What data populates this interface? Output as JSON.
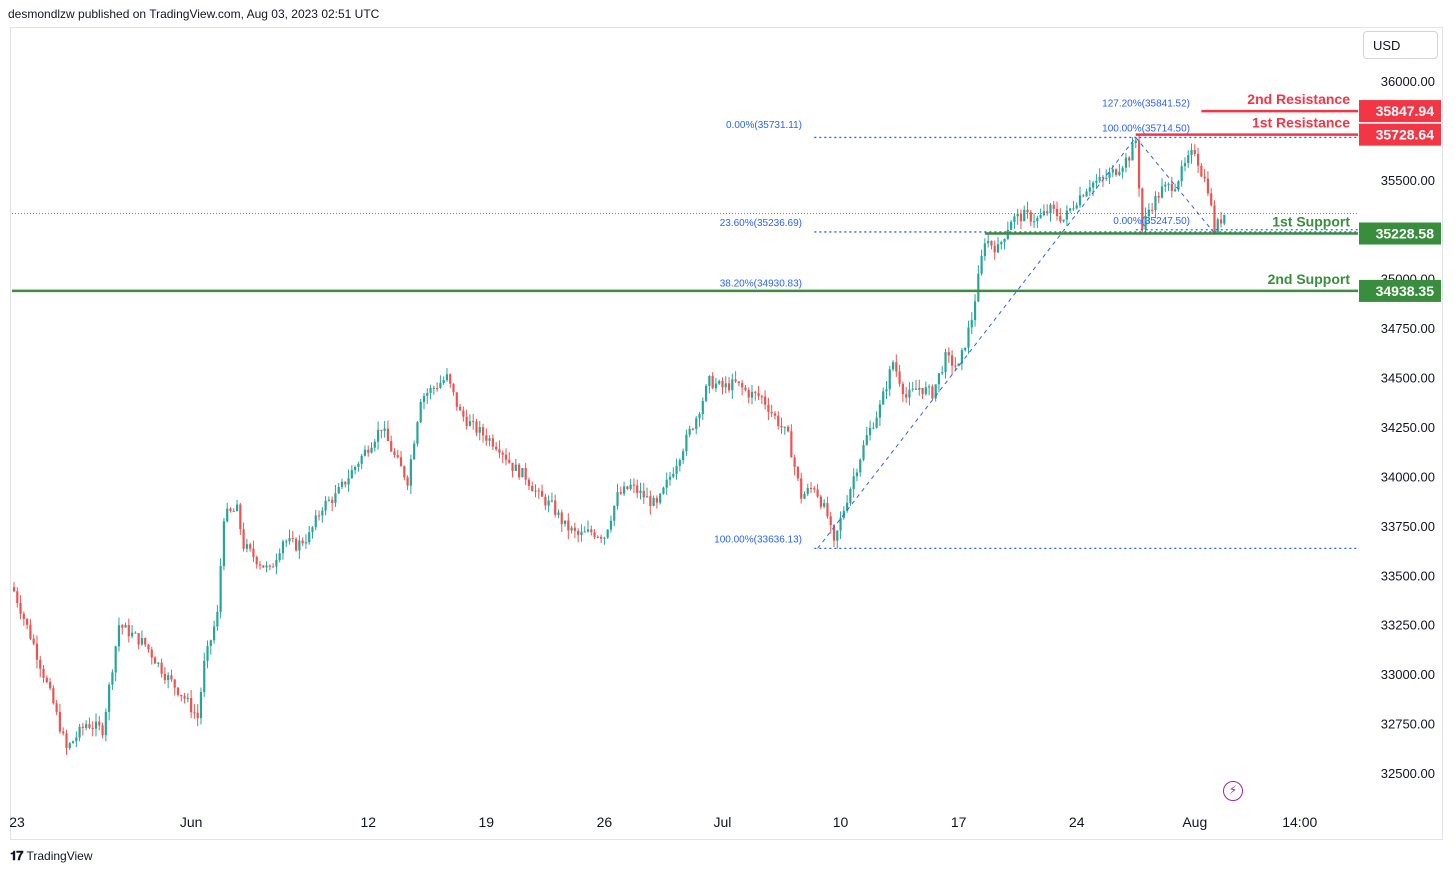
{
  "header": {
    "published": "desmondlzw published on TradingView.com, Aug 03, 2023 02:51 UTC"
  },
  "toolbar": {
    "currency": "USD"
  },
  "footer": {
    "brand": "TradingView"
  },
  "icons": {
    "brand_logo": "tradingview-logo-icon",
    "event": "lightning-icon"
  },
  "colors": {
    "bull": "#26a69a",
    "bear": "#ef5350",
    "resistance": "#f23645",
    "support": "#388e3c",
    "fib": "#2962ff",
    "axis_text": "#131722"
  },
  "chart_data": {
    "type": "candlestick",
    "symbol_currency": "USD",
    "ylim": [
      32350,
      36300
    ],
    "yticks": [
      32500,
      32750,
      33000,
      33250,
      33500,
      33750,
      34000,
      34250,
      34500,
      34750,
      35000,
      35500,
      36000
    ],
    "ytick_labels": [
      "32500.00",
      "32750.00",
      "33000.00",
      "33250.00",
      "33500.00",
      "33750.00",
      "34000.00",
      "34250.00",
      "34500.00",
      "34750.00",
      "35000.00",
      "35500.00",
      "36000.00"
    ],
    "xticks": [
      {
        "label": "23",
        "bar": 0
      },
      {
        "label": "Jun",
        "bar": 54
      },
      {
        "label": "12",
        "bar": 108
      },
      {
        "label": "19",
        "bar": 144
      },
      {
        "label": "26",
        "bar": 180
      },
      {
        "label": "Jul",
        "bar": 216
      },
      {
        "label": "10",
        "bar": 252
      },
      {
        "label": "17",
        "bar": 288
      },
      {
        "label": "24",
        "bar": 324
      },
      {
        "label": "Aug",
        "bar": 360
      },
      {
        "label": "14:00",
        "bar": 392
      }
    ],
    "levels": [
      {
        "label": "2nd Resistance",
        "price": 35847.94,
        "price_label": "35847.94",
        "kind": "resistance"
      },
      {
        "label": "1st Resistance",
        "price": 35728.64,
        "price_label": "35728.64",
        "kind": "resistance"
      },
      {
        "label": "1st Support",
        "price": 35228.58,
        "price_label": "35228.58",
        "kind": "support"
      },
      {
        "label": "2nd Support",
        "price": 34938.35,
        "price_label": "34938.35",
        "kind": "support"
      }
    ],
    "fib_labels": [
      {
        "text": "127.20%(35841.52)",
        "price": 35841.52
      },
      {
        "text": "100.00%(35714.50)",
        "price": 35714.5
      },
      {
        "text": "0.00%(35731.11)",
        "price": 35731.11
      },
      {
        "text": "23.60%(35236.69)",
        "price": 35236.69
      },
      {
        "text": "0.00%(35247.50)",
        "price": 35247.5
      },
      {
        "text": "38.20%(34930.83)",
        "price": 34930.83
      },
      {
        "text": "100.00%(33636.13)",
        "price": 33636.13
      }
    ],
    "last_price": 35330,
    "anchors": [
      [
        0,
        33420
      ],
      [
        6,
        33150
      ],
      [
        12,
        32850
      ],
      [
        16,
        32620
      ],
      [
        22,
        32750
      ],
      [
        27,
        32720
      ],
      [
        32,
        33250
      ],
      [
        40,
        33150
      ],
      [
        46,
        33000
      ],
      [
        52,
        32880
      ],
      [
        56,
        32780
      ],
      [
        58,
        33050
      ],
      [
        62,
        33300
      ],
      [
        64,
        33800
      ],
      [
        68,
        33830
      ],
      [
        70,
        33650
      ],
      [
        74,
        33580
      ],
      [
        78,
        33520
      ],
      [
        82,
        33680
      ],
      [
        86,
        33650
      ],
      [
        90,
        33700
      ],
      [
        94,
        33850
      ],
      [
        98,
        33900
      ],
      [
        102,
        34000
      ],
      [
        108,
        34150
      ],
      [
        112,
        34250
      ],
      [
        116,
        34100
      ],
      [
        120,
        33980
      ],
      [
        124,
        34400
      ],
      [
        128,
        34450
      ],
      [
        132,
        34500
      ],
      [
        136,
        34320
      ],
      [
        140,
        34250
      ],
      [
        144,
        34200
      ],
      [
        148,
        34150
      ],
      [
        152,
        34050
      ],
      [
        156,
        34000
      ],
      [
        160,
        33900
      ],
      [
        164,
        33850
      ],
      [
        168,
        33750
      ],
      [
        172,
        33700
      ],
      [
        176,
        33720
      ],
      [
        180,
        33700
      ],
      [
        184,
        33900
      ],
      [
        188,
        33950
      ],
      [
        192,
        33900
      ],
      [
        196,
        33850
      ],
      [
        200,
        34000
      ],
      [
        204,
        34150
      ],
      [
        208,
        34300
      ],
      [
        212,
        34480
      ],
      [
        216,
        34450
      ],
      [
        220,
        34470
      ],
      [
        224,
        34420
      ],
      [
        228,
        34400
      ],
      [
        232,
        34300
      ],
      [
        236,
        34200
      ],
      [
        240,
        33900
      ],
      [
        244,
        33950
      ],
      [
        248,
        33800
      ],
      [
        250,
        33650
      ],
      [
        252,
        33780
      ],
      [
        256,
        34000
      ],
      [
        260,
        34200
      ],
      [
        264,
        34350
      ],
      [
        268,
        34580
      ],
      [
        272,
        34400
      ],
      [
        276,
        34450
      ],
      [
        280,
        34420
      ],
      [
        284,
        34600
      ],
      [
        288,
        34550
      ],
      [
        292,
        34800
      ],
      [
        296,
        35200
      ],
      [
        300,
        35150
      ],
      [
        304,
        35300
      ],
      [
        308,
        35320
      ],
      [
        312,
        35300
      ],
      [
        316,
        35350
      ],
      [
        320,
        35300
      ],
      [
        324,
        35400
      ],
      [
        328,
        35480
      ],
      [
        332,
        35500
      ],
      [
        336,
        35550
      ],
      [
        340,
        35620
      ],
      [
        342,
        35700
      ],
      [
        344,
        35250
      ],
      [
        346,
        35350
      ],
      [
        350,
        35450
      ],
      [
        354,
        35480
      ],
      [
        358,
        35600
      ],
      [
        360,
        35650
      ],
      [
        362,
        35540
      ],
      [
        364,
        35460
      ],
      [
        366,
        35250
      ],
      [
        368,
        35300
      ],
      [
        369,
        35330
      ]
    ]
  }
}
